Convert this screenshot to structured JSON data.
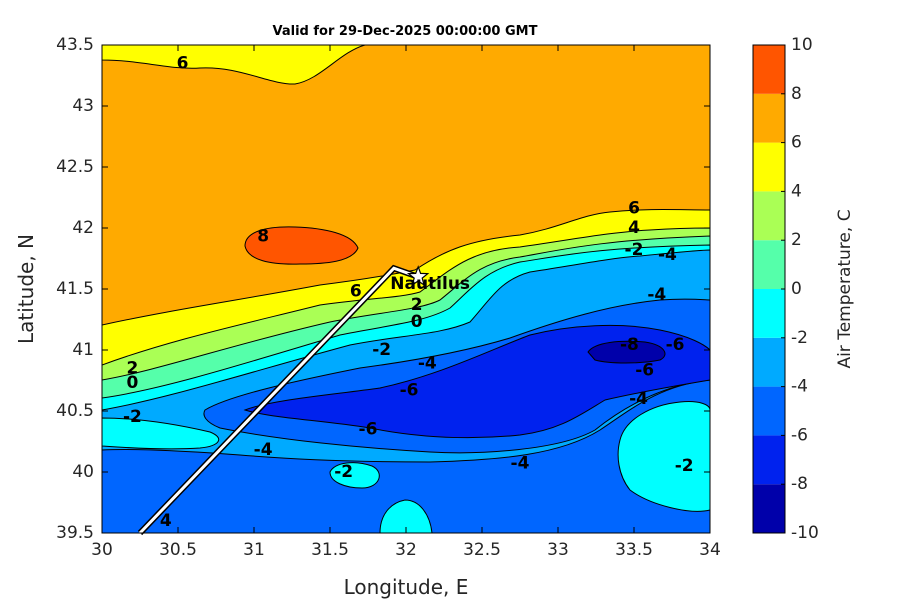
{
  "chart_data": {
    "type": "heatmap",
    "title": "Valid for 29-Dec-2025 00:00:00 GMT",
    "xlabel": "Longitude, E",
    "ylabel": "Latitude, N",
    "colorbar_label": "Air Temperature, C",
    "xlim": [
      30,
      34
    ],
    "ylim": [
      39.5,
      43.5
    ],
    "clim": [
      -10,
      10
    ],
    "x_ticks": [
      "30",
      "30.5",
      "31",
      "31.5",
      "32",
      "32.5",
      "33",
      "33.5",
      "34"
    ],
    "y_ticks": [
      "39.5",
      "40",
      "40.5",
      "41",
      "41.5",
      "42",
      "42.5",
      "43",
      "43.5"
    ],
    "colorbar_ticks": [
      "-10",
      "-8",
      "-6",
      "-4",
      "-2",
      "0",
      "2",
      "4",
      "6",
      "8",
      "10"
    ],
    "levels": [
      {
        "min": -10,
        "max": -8,
        "color": "#0000aa"
      },
      {
        "min": -8,
        "max": -6,
        "color": "#0022ee"
      },
      {
        "min": -6,
        "max": -4,
        "color": "#0066ff"
      },
      {
        "min": -4,
        "max": -2,
        "color": "#00aaff"
      },
      {
        "min": -2,
        "max": 0,
        "color": "#00ffff"
      },
      {
        "min": 0,
        "max": 2,
        "color": "#55ffaa"
      },
      {
        "min": 2,
        "max": 4,
        "color": "#aaff55"
      },
      {
        "min": 4,
        "max": 6,
        "color": "#ffff00"
      },
      {
        "min": 6,
        "max": 8,
        "color": "#ffaa00"
      },
      {
        "min": 8,
        "max": 10,
        "color": "#ff5500"
      },
      {
        "min": 10,
        "max": 12,
        "color": "#ff0000"
      }
    ],
    "contour_labels": [
      {
        "text": "6",
        "lon": 30.53,
        "lat": 43.35
      },
      {
        "text": "8",
        "lon": 31.06,
        "lat": 41.93
      },
      {
        "text": "6",
        "lon": 33.5,
        "lat": 42.16
      },
      {
        "text": "4",
        "lon": 33.5,
        "lat": 42.0
      },
      {
        "text": "-2",
        "lon": 33.5,
        "lat": 41.82
      },
      {
        "text": "-4",
        "lon": 33.72,
        "lat": 41.78
      },
      {
        "text": "-4",
        "lon": 33.65,
        "lat": 41.45
      },
      {
        "text": "6",
        "lon": 31.67,
        "lat": 41.48
      },
      {
        "text": "2",
        "lon": 32.07,
        "lat": 41.37
      },
      {
        "text": "0",
        "lon": 32.07,
        "lat": 41.23
      },
      {
        "text": "-2",
        "lon": 31.84,
        "lat": 41.0
      },
      {
        "text": "-4",
        "lon": 32.14,
        "lat": 40.89
      },
      {
        "text": "-6",
        "lon": 32.02,
        "lat": 40.67
      },
      {
        "text": "-8",
        "lon": 33.47,
        "lat": 41.04
      },
      {
        "text": "-6",
        "lon": 33.77,
        "lat": 41.04
      },
      {
        "text": "-6",
        "lon": 33.57,
        "lat": 40.83
      },
      {
        "text": "-4",
        "lon": 33.53,
        "lat": 40.6
      },
      {
        "text": "2",
        "lon": 30.2,
        "lat": 40.85
      },
      {
        "text": "0",
        "lon": 30.2,
        "lat": 40.73
      },
      {
        "text": "-2",
        "lon": 30.2,
        "lat": 40.45
      },
      {
        "text": "-6",
        "lon": 31.75,
        "lat": 40.35
      },
      {
        "text": "-4",
        "lon": 31.06,
        "lat": 40.18
      },
      {
        "text": "-2",
        "lon": 31.59,
        "lat": 40.0
      },
      {
        "text": "-4",
        "lon": 32.75,
        "lat": 40.07
      },
      {
        "text": "-2",
        "lon": 33.83,
        "lat": 40.05
      },
      {
        "text": "4",
        "lon": 30.42,
        "lat": 39.6
      }
    ],
    "ship": {
      "name": "Nautilus",
      "lon": 32.08,
      "lat": 41.6
    },
    "track": [
      [
        30.25,
        39.5
      ],
      [
        31.92,
        41.67
      ],
      [
        32.08,
        41.6
      ]
    ]
  }
}
